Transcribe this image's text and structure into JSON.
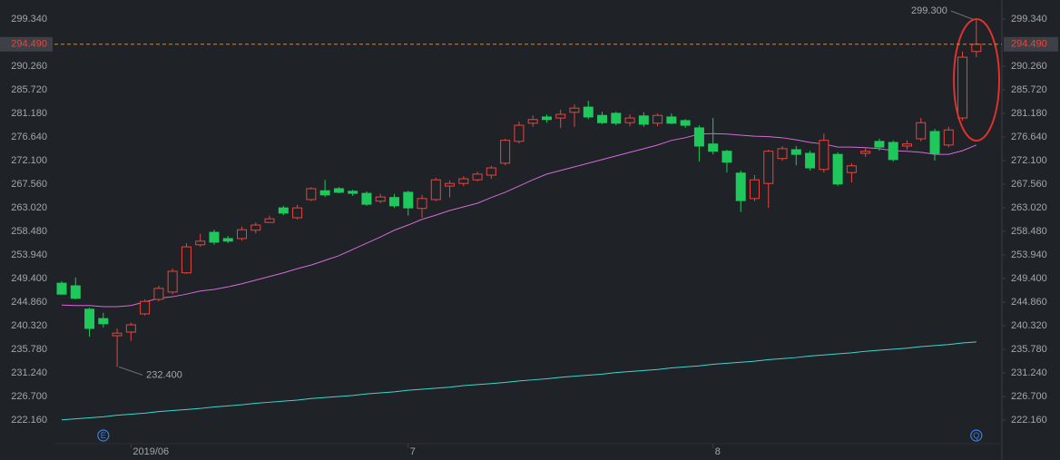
{
  "chart_data": {
    "type": "candlestick",
    "categories": [
      null,
      null,
      null,
      null,
      null,
      "2019/06",
      null,
      null,
      null,
      null,
      null,
      null,
      null,
      null,
      null,
      null,
      null,
      null,
      null,
      null,
      null,
      null,
      null,
      null,
      null,
      "7",
      null,
      null,
      null,
      null,
      null,
      null,
      null,
      null,
      null,
      null,
      null,
      null,
      null,
      null,
      null,
      null,
      null,
      null,
      null,
      null,
      null,
      "8",
      null,
      null,
      null,
      null,
      null,
      null,
      null,
      null,
      null,
      null,
      null,
      null,
      null,
      null,
      null,
      null,
      null,
      null,
      null
    ],
    "open": [
      248.5,
      248.0,
      243.5,
      241.7,
      238.4,
      239.1,
      242.6,
      245.4,
      246.8,
      250.5,
      255.9,
      258.3,
      257.1,
      257.1,
      258.7,
      260.2,
      263.0,
      261.1,
      264.6,
      266.3,
      266.7,
      266.2,
      265.8,
      264.3,
      265.0,
      266.0,
      262.9,
      264.6,
      267.2,
      267.7,
      268.4,
      269.3,
      271.6,
      275.8,
      279.3,
      280.5,
      280.3,
      281.4,
      282.4,
      280.8,
      281.2,
      279.4,
      280.7,
      279.3,
      280.5,
      279.8,
      278.4,
      275.3,
      273.9,
      269.7,
      264.8,
      267.7,
      272.5,
      274.2,
      273.5,
      270.4,
      273.3,
      269.8,
      273.5,
      275.8,
      275.6,
      274.9,
      276.3,
      277.7,
      275.1,
      280.3,
      293.1
    ],
    "high": [
      248.9,
      249.6,
      243.8,
      242.8,
      239.8,
      240.9,
      245.4,
      248.0,
      251.3,
      256.2,
      258.0,
      258.8,
      257.6,
      259.4,
      260.2,
      261.5,
      263.4,
      263.6,
      267.0,
      268.4,
      267.0,
      266.5,
      266.2,
      265.7,
      265.7,
      266.3,
      265.5,
      268.8,
      268.3,
      269.1,
      270.0,
      271.1,
      276.3,
      279.6,
      280.8,
      281.0,
      281.9,
      282.9,
      283.6,
      281.5,
      281.5,
      281.0,
      281.4,
      281.2,
      281.2,
      280.1,
      278.9,
      280.3,
      274.2,
      270.2,
      269.3,
      274.2,
      274.9,
      274.9,
      274.0,
      277.3,
      273.7,
      271.6,
      274.7,
      276.3,
      276.0,
      276.0,
      280.3,
      278.2,
      278.6,
      293.1,
      299.3
    ],
    "low": [
      246.3,
      245.4,
      238.2,
      240.0,
      232.4,
      237.4,
      242.3,
      245.0,
      246.4,
      250.3,
      255.5,
      255.9,
      256.2,
      256.7,
      258.1,
      260.1,
      261.6,
      260.8,
      264.3,
      265.1,
      265.8,
      265.3,
      263.4,
      263.9,
      263.0,
      261.5,
      261.1,
      264.3,
      265.0,
      267.2,
      268.1,
      268.6,
      271.2,
      275.4,
      278.6,
      279.4,
      278.4,
      278.6,
      280.1,
      279.1,
      278.9,
      278.7,
      278.6,
      278.7,
      279.1,
      278.4,
      271.9,
      273.3,
      269.8,
      262.2,
      264.3,
      263.0,
      272.1,
      271.2,
      270.2,
      269.8,
      267.2,
      267.9,
      272.8,
      274.0,
      271.9,
      274.2,
      275.8,
      272.1,
      274.7,
      279.8,
      292.0
    ],
    "close": [
      246.4,
      245.6,
      239.8,
      240.7,
      238.9,
      240.5,
      245.0,
      247.5,
      250.8,
      255.5,
      256.6,
      256.4,
      256.6,
      258.8,
      259.7,
      260.9,
      262.0,
      263.0,
      266.7,
      265.5,
      266.0,
      265.8,
      263.7,
      265.1,
      263.4,
      263.0,
      264.8,
      268.4,
      267.7,
      268.6,
      269.5,
      270.7,
      276.0,
      278.9,
      280.0,
      280.0,
      281.0,
      282.2,
      280.5,
      279.4,
      279.3,
      280.3,
      279.1,
      280.8,
      279.3,
      278.9,
      274.9,
      273.9,
      271.8,
      264.4,
      268.4,
      273.9,
      274.4,
      273.3,
      270.7,
      276.0,
      267.6,
      271.1,
      273.9,
      274.7,
      272.3,
      275.3,
      279.4,
      273.5,
      278.0,
      292.0,
      294.49
    ],
    "up_color": "#e8453c",
    "down_color": "#1ec85a",
    "series": [
      {
        "color": "#d46ad8",
        "values": [
          244.3,
          244.2,
          244.2,
          244.0,
          244.0,
          244.2,
          244.9,
          245.6,
          245.9,
          246.4,
          247.0,
          247.3,
          247.8,
          248.4,
          249.1,
          249.8,
          250.5,
          251.3,
          252.0,
          252.9,
          253.8,
          255.0,
          256.2,
          257.4,
          258.7,
          259.7,
          260.8,
          261.6,
          262.5,
          263.2,
          263.9,
          265.0,
          266.0,
          267.2,
          268.4,
          269.5,
          270.2,
          270.9,
          271.6,
          272.3,
          273.0,
          273.7,
          274.4,
          275.1,
          276.0,
          276.5,
          277.2,
          277.3,
          277.2,
          277.0,
          276.8,
          276.7,
          276.5,
          276.1,
          275.6,
          275.3,
          274.7,
          274.7,
          274.6,
          274.4,
          274.0,
          273.9,
          273.7,
          273.3,
          273.3,
          274.0,
          275.1
        ]
      },
      {
        "color": "#3fd6d0",
        "values": [
          222.2,
          222.4,
          222.6,
          222.8,
          223.1,
          223.3,
          223.5,
          223.8,
          224.0,
          224.2,
          224.4,
          224.7,
          224.9,
          225.1,
          225.4,
          225.6,
          225.8,
          226.0,
          226.3,
          226.5,
          226.7,
          226.9,
          227.2,
          227.4,
          227.6,
          227.9,
          228.1,
          228.3,
          228.5,
          228.8,
          229.0,
          229.2,
          229.4,
          229.7,
          229.9,
          230.1,
          230.4,
          230.6,
          230.8,
          231.0,
          231.3,
          231.5,
          231.7,
          231.9,
          232.2,
          232.4,
          232.6,
          232.9,
          233.1,
          233.3,
          233.5,
          233.8,
          234.0,
          234.2,
          234.5,
          234.7,
          234.9,
          235.1,
          235.4,
          235.6,
          235.8,
          236.0,
          236.3,
          236.5,
          236.7,
          237.0,
          237.2
        ]
      }
    ],
    "ylim": [
      220.94,
      303.01
    ],
    "yticks": [
      {
        "value": 222.16,
        "label": "222.160"
      },
      {
        "value": 226.7,
        "label": "226.700"
      },
      {
        "value": 231.24,
        "label": "231.240"
      },
      {
        "value": 235.78,
        "label": "235.780"
      },
      {
        "value": 240.32,
        "label": "240.320"
      },
      {
        "value": 244.86,
        "label": "244.860"
      },
      {
        "value": 249.4,
        "label": "249.400"
      },
      {
        "value": 253.94,
        "label": "253.940"
      },
      {
        "value": 258.48,
        "label": "258.480"
      },
      {
        "value": 263.02,
        "label": "263.020"
      },
      {
        "value": 267.56,
        "label": "267.560"
      },
      {
        "value": 272.1,
        "label": "272.100"
      },
      {
        "value": 276.64,
        "label": "276.640"
      },
      {
        "value": 281.18,
        "label": "281.180"
      },
      {
        "value": 285.72,
        "label": "285.720"
      },
      {
        "value": 290.26,
        "label": "290.260"
      },
      {
        "value": 299.34,
        "label": "299.340"
      }
    ],
    "last_price": {
      "value": 294.49,
      "label": "294.490"
    },
    "max_marker": {
      "index": 66,
      "value": 299.3,
      "label": "299.300"
    },
    "min_marker": {
      "index": 4,
      "value": 232.4,
      "label": "232.400"
    },
    "events": [
      {
        "index": 3,
        "label": "E"
      },
      {
        "index": 66,
        "label": "Q"
      }
    ]
  }
}
